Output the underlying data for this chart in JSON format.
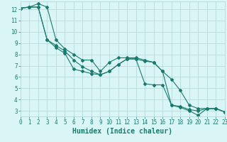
{
  "xlabel": "Humidex (Indice chaleur)",
  "bg_color": "#d9f5f5",
  "grid_color": "#b8dada",
  "line_color": "#1a7a6e",
  "series1_x": [
    0,
    1,
    2,
    3,
    4,
    5,
    6,
    7,
    8,
    9,
    10,
    11,
    12,
    13,
    14,
    15,
    16,
    17,
    18,
    19,
    20,
    21,
    22,
    23
  ],
  "series1_y": [
    12.1,
    12.2,
    12.2,
    9.3,
    8.6,
    8.1,
    6.7,
    6.5,
    6.3,
    6.2,
    6.5,
    7.1,
    7.6,
    7.6,
    5.4,
    5.3,
    5.3,
    3.5,
    3.4,
    3.1,
    3.0,
    3.2,
    3.2,
    2.9
  ],
  "series2_x": [
    0,
    1,
    2,
    3,
    4,
    5,
    6,
    7,
    8,
    9,
    10,
    11,
    12,
    13,
    14,
    15,
    16,
    17,
    18,
    19,
    20,
    21,
    22,
    23
  ],
  "series2_y": [
    12.1,
    12.2,
    12.2,
    9.3,
    8.8,
    8.3,
    7.5,
    6.9,
    6.5,
    6.2,
    6.5,
    7.1,
    7.6,
    7.6,
    7.4,
    7.3,
    6.5,
    5.8,
    4.8,
    3.5,
    3.2,
    3.2,
    3.2,
    2.9
  ],
  "series3_x": [
    0,
    1,
    2,
    3,
    4,
    5,
    6,
    7,
    8,
    9,
    10,
    11,
    12,
    13,
    14,
    15,
    16,
    17,
    18,
    19,
    20,
    21,
    22,
    23
  ],
  "series3_y": [
    12.1,
    12.2,
    12.5,
    12.2,
    9.3,
    8.5,
    8.0,
    7.5,
    7.5,
    6.5,
    7.3,
    7.7,
    7.7,
    7.7,
    7.5,
    7.3,
    6.5,
    3.5,
    3.3,
    3.0,
    2.6,
    3.2,
    3.2,
    2.9
  ],
  "xlim": [
    0,
    23
  ],
  "ylim": [
    2.5,
    12.7
  ],
  "yticks": [
    3,
    4,
    5,
    6,
    7,
    8,
    9,
    10,
    11,
    12
  ],
  "xticks": [
    0,
    1,
    2,
    3,
    4,
    5,
    6,
    7,
    8,
    9,
    10,
    11,
    12,
    13,
    14,
    15,
    16,
    17,
    18,
    19,
    20,
    21,
    22,
    23
  ],
  "marker": "D",
  "markersize": 2.0,
  "linewidth": 0.8,
  "font_color": "#1a7a6e",
  "xlabel_fontsize": 7,
  "tick_fontsize": 5.5
}
